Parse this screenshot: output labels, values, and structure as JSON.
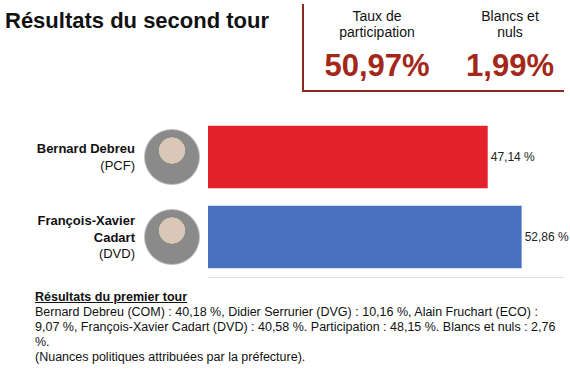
{
  "header": {
    "title": "Résultats du second tour",
    "stats": [
      {
        "label": "Taux de participation",
        "value": "50,97%"
      },
      {
        "label": "Blancs et nuls",
        "value": "1,99%"
      }
    ]
  },
  "chart_data": {
    "type": "bar",
    "orientation": "horizontal",
    "categories": [
      "Bernard Debreu",
      "François-Xavier Cadart"
    ],
    "parties": [
      "(PCF)",
      "(DVD)"
    ],
    "values": [
      47.14,
      52.86
    ],
    "value_labels": [
      "47,14 %",
      "52,86 %"
    ],
    "colors": [
      "#e3222b",
      "#4a70c0"
    ],
    "xlim": [
      0,
      60
    ],
    "xticks": [],
    "data_labels": true,
    "tick_labels": "y",
    "grid": false
  },
  "footer": {
    "heading": "Résultats du premier tour",
    "text": "Bernard Debreu (COM) : 40,18 %, Didier Serrurier (DVG) : 10,16 %, Alain Fruchart (ECO) : 9,07 %, François-Xavier Cadart (DVD) : 40,58 %. Participation : 48,15 %. Blancs et nuls : 2,76 %.",
    "note": "(Nuances politiques attribuées par la préfecture)."
  }
}
